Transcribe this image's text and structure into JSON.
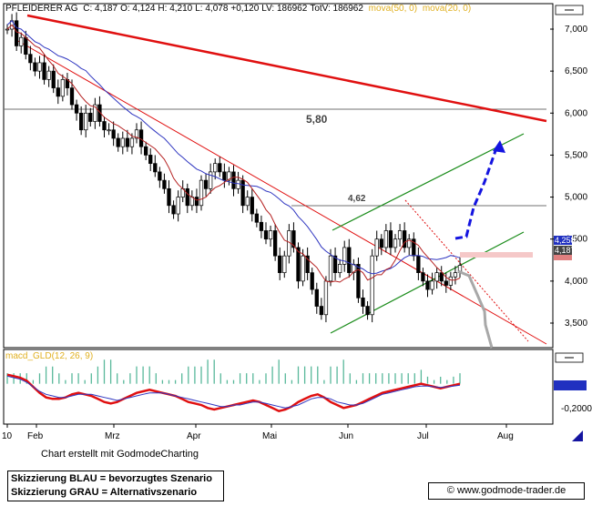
{
  "header": {
    "name": "PFLEIDERER AG",
    "c": "C: 4,187",
    "o": "O: 4,124",
    "h": "H: 4,210",
    "l": "L: 4,078",
    "chg": "+0,120",
    "lv": "LV: 186962",
    "totv": "TotV: 186962",
    "mova1": "mova(50, 0)",
    "mova2": "mova(20, 0)"
  },
  "indicator_label": "macd_GLD(12, 26, 9)",
  "footer": {
    "credit": "Chart erstellt mit GodmodeCharting",
    "blau": "Skizzierung BLAU = bevorzugtes Szenario",
    "grau": "Skizzierung GRAU = Alternativszenario",
    "url": "© www.godmode-trader.de"
  },
  "colors": {
    "price": "#000000",
    "ma50": "#2f36c0",
    "ma20": "#b52020",
    "trend": "#e01010",
    "channel": "#1a8c1a",
    "scenario_blue": "#1414e0",
    "scenario_gray": "#a8a8a8",
    "macd": "#e01010",
    "signal": "#2f36c0",
    "histogram": "#58b89a",
    "label_dark": "#444444",
    "label_red": "#e08080",
    "label_blue": "#2030c0"
  },
  "chart_data": [
    {
      "type": "candlestick",
      "x_ticks": [
        "10",
        "Feb",
        "Mrz",
        "Apr",
        "Mai",
        "Jun",
        "Jul",
        "Aug"
      ],
      "y_ticks": [
        "7,000",
        "6,500",
        "6,000",
        "5,500",
        "5,000",
        "4,500",
        "4,000",
        "3,500"
      ],
      "y_tick_values": [
        7.0,
        6.5,
        6.0,
        5.5,
        5.0,
        4.5,
        4.0,
        3.5
      ],
      "ylim": [
        3.3,
        7.2
      ],
      "levels": [
        {
          "label": "5,80",
          "value": 5.8
        },
        {
          "label": "4,62",
          "value": 4.62
        }
      ],
      "price_labels": [
        {
          "label": "4,258",
          "value": 4.258
        },
        {
          "label": "4,187",
          "value": 4.187
        }
      ],
      "close_series": [
        7.0,
        7.1,
        6.8,
        6.9,
        6.7,
        6.6,
        6.5,
        6.6,
        6.4,
        6.5,
        6.3,
        6.2,
        6.4,
        6.3,
        6.1,
        6.0,
        5.8,
        6.0,
        5.9,
        6.1,
        5.9,
        5.8,
        5.8,
        5.7,
        5.6,
        5.7,
        5.6,
        5.7,
        5.8,
        5.6,
        5.5,
        5.4,
        5.3,
        5.2,
        5.1,
        4.9,
        4.8,
        5.0,
        5.1,
        4.9,
        5.0,
        4.9,
        5.2,
        5.1,
        5.3,
        5.4,
        5.3,
        5.2,
        5.3,
        5.1,
        5.2,
        4.9,
        5.0,
        4.8,
        4.7,
        4.6,
        4.5,
        4.6,
        4.3,
        4.1,
        4.3,
        4.6,
        4.4,
        4.0,
        4.3,
        4.1,
        3.9,
        3.7,
        3.6,
        4.0,
        4.3,
        4.1,
        4.2,
        4.4,
        4.1,
        4.2,
        3.8,
        3.7,
        3.6,
        4.3,
        4.5,
        4.4,
        4.6,
        4.4,
        4.5,
        4.6,
        4.4,
        4.5,
        4.3,
        4.1,
        4.0,
        3.9,
        4.0,
        4.1,
        4.0,
        3.95,
        4.05,
        4.1,
        4.187
      ]
    },
    {
      "type": "line",
      "name": "macd_GLD(12, 26, 9)",
      "y_ticks": [
        "0,0027",
        "-0,2000"
      ],
      "y_tick_values": [
        0.0027,
        -0.2
      ],
      "ylim": [
        -0.28,
        0.12
      ],
      "macd_series": [
        0.06,
        0.05,
        0.04,
        0.02,
        -0.02,
        -0.06,
        -0.09,
        -0.1,
        -0.1,
        -0.09,
        -0.07,
        -0.06,
        -0.07,
        -0.08,
        -0.1,
        -0.12,
        -0.13,
        -0.12,
        -0.1,
        -0.08,
        -0.06,
        -0.05,
        -0.04,
        -0.05,
        -0.06,
        -0.07,
        -0.08,
        -0.1,
        -0.12,
        -0.13,
        -0.14,
        -0.16,
        -0.17,
        -0.16,
        -0.15,
        -0.14,
        -0.13,
        -0.12,
        -0.11,
        -0.12,
        -0.14,
        -0.16,
        -0.18,
        -0.17,
        -0.15,
        -0.12,
        -0.1,
        -0.08,
        -0.07,
        -0.09,
        -0.12,
        -0.14,
        -0.16,
        -0.15,
        -0.14,
        -0.12,
        -0.1,
        -0.08,
        -0.06,
        -0.05,
        -0.04,
        -0.03,
        -0.02,
        -0.01,
        0.0,
        -0.01,
        -0.02,
        -0.03,
        -0.02,
        -0.01,
        0.0
      ],
      "signal_series": [
        0.05,
        0.04,
        0.03,
        0.01,
        -0.02,
        -0.05,
        -0.07,
        -0.08,
        -0.09,
        -0.09,
        -0.08,
        -0.07,
        -0.07,
        -0.07,
        -0.08,
        -0.09,
        -0.1,
        -0.11,
        -0.1,
        -0.09,
        -0.08,
        -0.07,
        -0.06,
        -0.06,
        -0.06,
        -0.07,
        -0.08,
        -0.09,
        -0.1,
        -0.11,
        -0.12,
        -0.13,
        -0.14,
        -0.15,
        -0.15,
        -0.14,
        -0.14,
        -0.13,
        -0.12,
        -0.12,
        -0.13,
        -0.14,
        -0.15,
        -0.16,
        -0.15,
        -0.14,
        -0.12,
        -0.1,
        -0.09,
        -0.09,
        -0.1,
        -0.12,
        -0.13,
        -0.14,
        -0.14,
        -0.13,
        -0.11,
        -0.09,
        -0.07,
        -0.06,
        -0.05,
        -0.04,
        -0.03,
        -0.02,
        -0.015,
        -0.015,
        -0.02,
        -0.025,
        -0.02,
        -0.015,
        -0.01
      ]
    }
  ]
}
